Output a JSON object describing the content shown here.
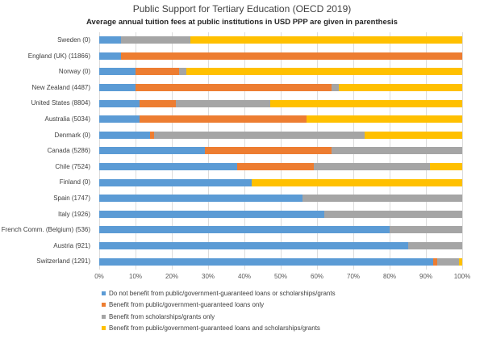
{
  "title": "Public Support for Tertiary Education (OECD 2019)",
  "subtitle": "Average annual tuition fees at public institutions in USD PPP are given in parenthesis",
  "colors": {
    "series_blue": "#5B9BD5",
    "series_orange": "#ED7D31",
    "series_gray": "#A5A5A5",
    "series_yellow": "#FFC000",
    "gridline": "#DCDCDC",
    "text": "#404040"
  },
  "chart_data": {
    "type": "bar",
    "orientation": "horizontal",
    "stacked": true,
    "units": "percent",
    "grid": true,
    "legend_position": "bottom-left",
    "categories": [
      "Sweden (0)",
      "England (UK) (11866)",
      "Norway (0)",
      "New Zealand (4487)",
      "United States (8804)",
      "Australia (5034)",
      "Denmark (0)",
      "Canada (5286)",
      "Chile (7524)",
      "Finland (0)",
      "Spain (1747)",
      "Italy (1926)",
      "French Comm. (Belgium) (536)",
      "Austria (921)",
      "Switzerland (1291)"
    ],
    "series": [
      {
        "name": "Do not benefit from public/government-guaranteed loans or scholarships/grants",
        "color": "#5B9BD5",
        "values": [
          6,
          6,
          10,
          10,
          11,
          11,
          14,
          29,
          38,
          42,
          56,
          62,
          80,
          85,
          92
        ]
      },
      {
        "name": "Benefit from public/government-guaranteed loans only",
        "color": "#ED7D31",
        "values": [
          0,
          94,
          12,
          54,
          10,
          46,
          1,
          35,
          21,
          0,
          0,
          0,
          0,
          0,
          1
        ]
      },
      {
        "name": "Benefit from scholarships/grants only",
        "color": "#A5A5A5",
        "values": [
          19,
          0,
          2,
          2,
          26,
          0,
          58,
          36,
          32,
          0,
          44,
          38,
          20,
          15,
          6
        ]
      },
      {
        "name": "Benefit from public/government-guaranteed loans and scholarships/grants",
        "color": "#FFC000",
        "values": [
          75,
          0,
          76,
          34,
          53,
          43,
          27,
          0,
          9,
          58,
          0,
          0,
          0,
          0,
          1
        ]
      }
    ],
    "x_axis": {
      "min": 0,
      "max": 100,
      "ticks": [
        "0%",
        "10%",
        "20%",
        "30%",
        "40%",
        "50%",
        "60%",
        "70%",
        "80%",
        "90%",
        "100%"
      ]
    }
  }
}
